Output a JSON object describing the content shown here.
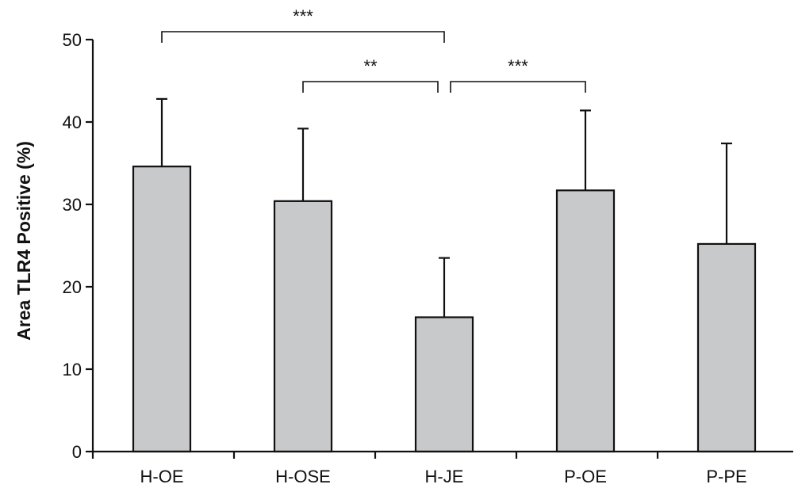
{
  "chart_data": {
    "type": "bar",
    "title": "",
    "xlabel": "",
    "ylabel": "Area TLR4 Positive (%)",
    "ylim": [
      0,
      50
    ],
    "yticks": [
      0,
      10,
      20,
      30,
      40,
      50
    ],
    "categories": [
      "H-OE",
      "H-OSE",
      "H-JE",
      "P-OE",
      "P-PE"
    ],
    "values": [
      34.6,
      30.4,
      16.3,
      31.7,
      25.2
    ],
    "error_upper": [
      42.8,
      39.2,
      23.5,
      41.4,
      37.4
    ],
    "error_style": "upper whisker only",
    "grid": false,
    "bar_color": "#c8c9cb",
    "edge_color": "#111111",
    "significance": [
      {
        "from": "H-OE",
        "to": "H-JE",
        "label": "***",
        "level": 1
      },
      {
        "from": "H-OSE",
        "to": "H-JE",
        "label": "**",
        "level": 0
      },
      {
        "from": "H-JE",
        "to": "P-OE",
        "label": "***",
        "level": 0
      }
    ]
  }
}
